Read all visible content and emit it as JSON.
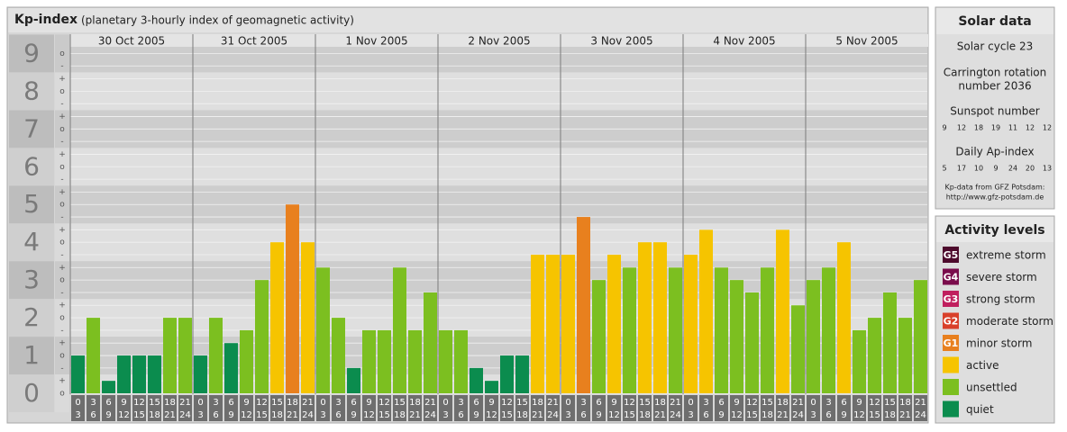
{
  "title": "Kp-index",
  "subtitle": "(planetary 3-hourly index of geomagnetic activity)",
  "chart_data": {
    "type": "bar",
    "days": [
      "30 Oct 2005",
      "31 Oct 2005",
      "1 Nov 2005",
      "2 Nov 2005",
      "3 Nov 2005",
      "4 Nov 2005",
      "5 Nov 2005"
    ],
    "hours": [
      "0",
      "3",
      "6",
      "9",
      "12",
      "15",
      "18",
      "21",
      "24"
    ],
    "values": [
      1,
      2,
      0.33,
      1,
      1,
      1,
      2,
      2,
      1,
      2,
      1.33,
      1.67,
      3,
      4,
      5,
      4,
      3.33,
      2,
      0.67,
      1.67,
      1.67,
      3.33,
      1.67,
      2.67,
      1.67,
      1.67,
      0.67,
      0.33,
      1,
      1,
      3.67,
      3.67,
      3.67,
      4.67,
      3,
      3.67,
      3.33,
      4,
      4,
      3.33,
      3.67,
      4.33,
      3.33,
      3,
      2.67,
      3.33,
      4.33,
      2.33,
      3,
      3.33,
      4,
      1.67,
      2,
      2.67,
      2,
      3
    ],
    "colors": [
      "#0b8c4e",
      "#7cbf20",
      "#0b8c4e",
      "#0b8c4e",
      "#0b8c4e",
      "#0b8c4e",
      "#7cbf20",
      "#7cbf20",
      "#0b8c4e",
      "#7cbf20",
      "#0b8c4e",
      "#7cbf20",
      "#7cbf20",
      "#f6c400",
      "#e8801e",
      "#f6c400",
      "#7cbf20",
      "#7cbf20",
      "#0b8c4e",
      "#7cbf20",
      "#7cbf20",
      "#7cbf20",
      "#7cbf20",
      "#7cbf20",
      "#7cbf20",
      "#7cbf20",
      "#0b8c4e",
      "#0b8c4e",
      "#0b8c4e",
      "#0b8c4e",
      "#f6c400",
      "#f6c400",
      "#f6c400",
      "#e8801e",
      "#7cbf20",
      "#f6c400",
      "#7cbf20",
      "#f6c400",
      "#f6c400",
      "#7cbf20",
      "#f6c400",
      "#f6c400",
      "#7cbf20",
      "#7cbf20",
      "#7cbf20",
      "#7cbf20",
      "#f6c400",
      "#7cbf20",
      "#7cbf20",
      "#7cbf20",
      "#f6c400",
      "#7cbf20",
      "#7cbf20",
      "#7cbf20",
      "#7cbf20",
      "#7cbf20"
    ],
    "ylim": [
      0,
      9.2
    ],
    "yticks": [
      0,
      1,
      2,
      3,
      4,
      5,
      6,
      7,
      8,
      9
    ],
    "yminorticks": [
      {
        "value": 0,
        "label": "o"
      },
      {
        "value": 0.33,
        "label": "+"
      },
      {
        "value": 0.67,
        "label": "-"
      },
      {
        "value": 1,
        "label": "o"
      },
      {
        "value": 1.33,
        "label": "+"
      },
      {
        "value": 1.67,
        "label": "-"
      },
      {
        "value": 2,
        "label": "o"
      },
      {
        "value": 2.33,
        "label": "+"
      },
      {
        "value": 2.67,
        "label": "-"
      },
      {
        "value": 3,
        "label": "o"
      },
      {
        "value": 3.33,
        "label": "+"
      },
      {
        "value": 3.67,
        "label": "-"
      },
      {
        "value": 4,
        "label": "o"
      },
      {
        "value": 4.33,
        "label": "+"
      },
      {
        "value": 4.67,
        "label": "-"
      },
      {
        "value": 5,
        "label": "o"
      },
      {
        "value": 5.33,
        "label": "+"
      },
      {
        "value": 5.67,
        "label": "-"
      },
      {
        "value": 6,
        "label": "o"
      },
      {
        "value": 6.33,
        "label": "+"
      },
      {
        "value": 6.67,
        "label": "-"
      },
      {
        "value": 7,
        "label": "o"
      },
      {
        "value": 7.33,
        "label": "+"
      },
      {
        "value": 7.67,
        "label": "-"
      },
      {
        "value": 8,
        "label": "o"
      },
      {
        "value": 8.33,
        "label": "+"
      },
      {
        "value": 8.67,
        "label": "-"
      },
      {
        "value": 9,
        "label": "o"
      }
    ],
    "grid": true
  },
  "solar_data": {
    "title": "Solar data",
    "solar_cycle": "Solar cycle 23",
    "carrington": [
      "Carrington rotation",
      "number 2036"
    ],
    "sunspot_label": "Sunspot number",
    "sunspot": [
      9,
      12,
      18,
      19,
      11,
      12,
      12
    ],
    "ap_label": "Daily Ap-index",
    "ap": [
      5,
      17,
      10,
      9,
      24,
      20,
      13
    ],
    "source": "Kp-data from GFZ Potsdam:",
    "url": "http://www.gfz-potsdam.de"
  },
  "activity_levels": {
    "title": "Activity levels",
    "levels": [
      {
        "badge": "G5",
        "name": "extreme storm",
        "color": "#4d0a2c"
      },
      {
        "badge": "G4",
        "name": "severe storm",
        "color": "#7a0c4c"
      },
      {
        "badge": "G3",
        "name": "strong storm",
        "color": "#c01f5e"
      },
      {
        "badge": "G2",
        "name": "moderate storm",
        "color": "#d9402a"
      },
      {
        "badge": "G1",
        "name": "minor storm",
        "color": "#e8801e"
      },
      {
        "name": "active",
        "color": "#f6c400"
      },
      {
        "name": "unsettled",
        "color": "#7cbf20"
      },
      {
        "name": "quiet",
        "color": "#0b8c4e"
      }
    ]
  }
}
